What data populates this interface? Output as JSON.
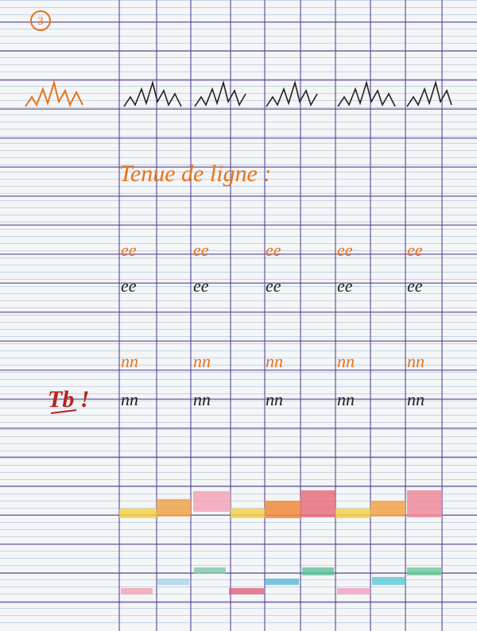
{
  "page": {
    "number": "3",
    "title": "Tenue de ligne :",
    "teacher_mark": "Tb !",
    "loops_pattern": "ee",
    "arches_pattern": "nn"
  }
}
